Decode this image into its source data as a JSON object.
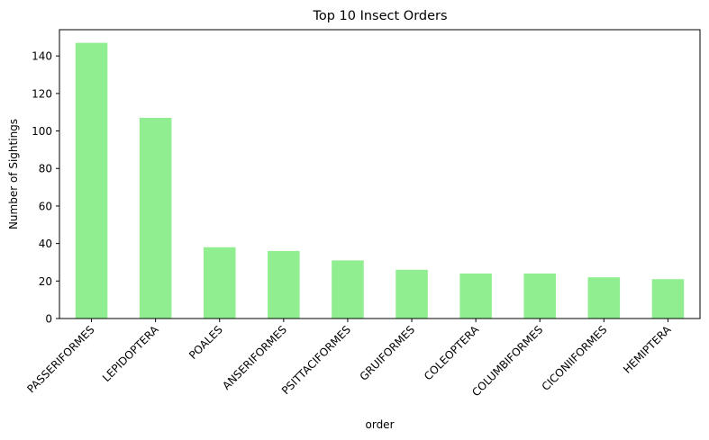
{
  "chart_data": {
    "type": "bar",
    "title": "Top 10 Insect Orders",
    "xlabel": "order",
    "ylabel": "Number of Sightings",
    "categories": [
      "PASSERIFORMES",
      "LEPIDOPTERA",
      "POALES",
      "ANSERIFORMES",
      "PSITTACIFORMES",
      "GRUIFORMES",
      "COLEOPTERA",
      "COLUMBIFORMES",
      "CICONIIFORMES",
      "HEMIPTERA"
    ],
    "values": [
      147,
      107,
      38,
      36,
      31,
      26,
      24,
      24,
      22,
      21
    ],
    "ylim": [
      0,
      154
    ],
    "yticks": [
      0,
      20,
      40,
      60,
      80,
      100,
      120,
      140
    ],
    "bar_color": "#90ee90",
    "grid": false,
    "legend": "none",
    "xtick_rotation": "45deg"
  }
}
